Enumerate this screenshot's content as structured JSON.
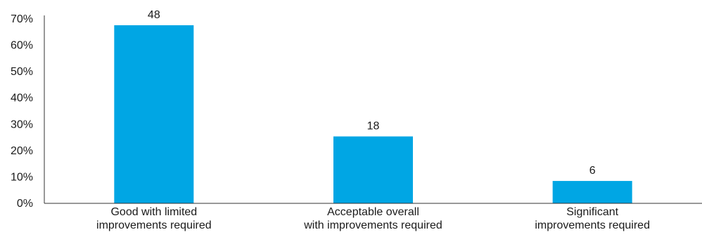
{
  "chart_data": {
    "type": "bar",
    "categories": [
      [
        "Good with limited",
        "improvements required"
      ],
      [
        "Acceptable overall",
        "with improvements required"
      ],
      [
        "Significant",
        "improvements required"
      ]
    ],
    "values": [
      67.6,
      25.4,
      8.5
    ],
    "data_labels": [
      "48",
      "18",
      "6"
    ],
    "y_ticks": [
      0,
      10,
      20,
      30,
      40,
      50,
      60,
      70
    ],
    "y_tick_labels": [
      "0%",
      "10%",
      "20%",
      "30%",
      "40%",
      "50%",
      "60%",
      "70%"
    ],
    "ylim": [
      0,
      70
    ],
    "grid": false,
    "legend": "none",
    "bar_color": "#00a6e4",
    "title": "",
    "xlabel": "",
    "ylabel": ""
  }
}
